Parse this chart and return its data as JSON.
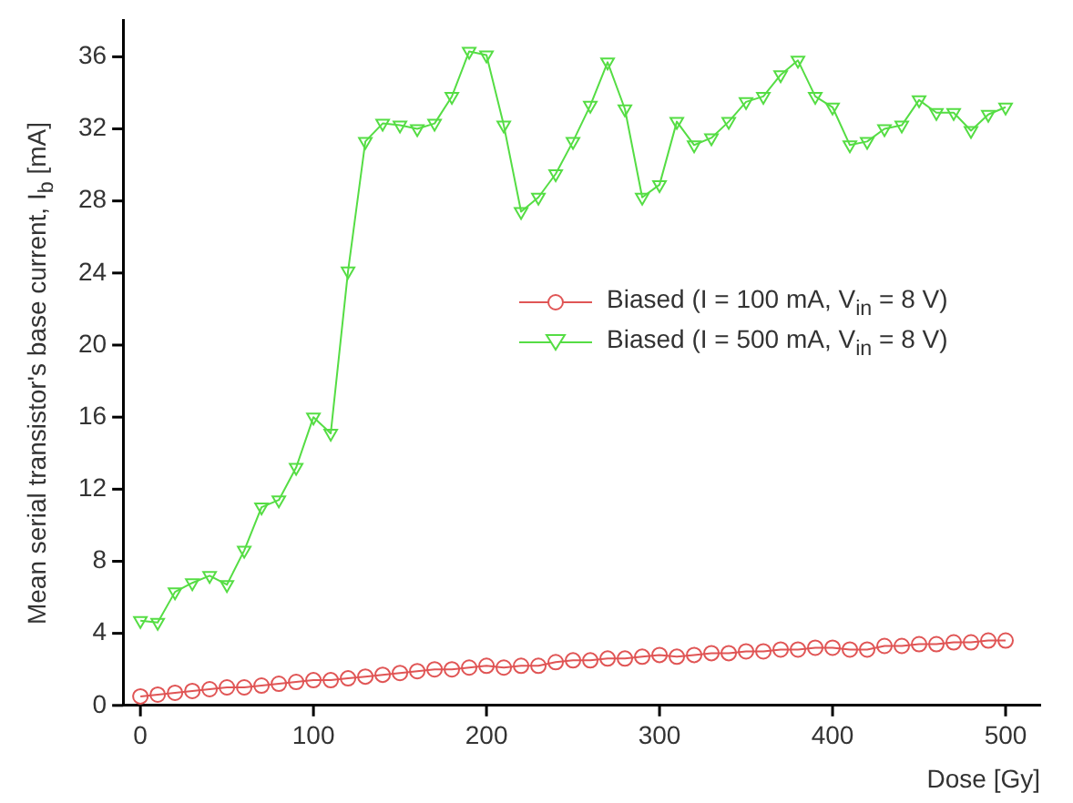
{
  "chart_data": {
    "type": "line",
    "xlabel": "Dose [Gy]",
    "ylabel": "Mean serial transistor's base current, I$_{b}$ [mA]",
    "xlim": [
      -10,
      520
    ],
    "xticks": [
      0,
      100,
      200,
      300,
      400,
      500
    ],
    "ylim": [
      0,
      38
    ],
    "yticks": [
      0,
      4,
      8,
      12,
      16,
      20,
      24,
      28,
      32,
      36
    ],
    "grid": false,
    "legend": "right",
    "line_style": "solid",
    "series": [
      {
        "name": "Biased (I = 100 mA, V$_{in}$ = 8 V)",
        "color": "#e05555",
        "marker": "circle",
        "x": [
          0,
          10,
          20,
          30,
          40,
          50,
          60,
          70,
          80,
          90,
          100,
          110,
          120,
          130,
          140,
          150,
          160,
          170,
          180,
          190,
          200,
          210,
          220,
          230,
          240,
          250,
          260,
          270,
          280,
          290,
          300,
          310,
          320,
          330,
          340,
          350,
          360,
          370,
          380,
          390,
          400,
          410,
          420,
          430,
          440,
          450,
          460,
          470,
          480,
          490,
          500
        ],
        "values": [
          0.5,
          0.6,
          0.7,
          0.8,
          0.9,
          1.0,
          1.0,
          1.1,
          1.2,
          1.3,
          1.4,
          1.4,
          1.5,
          1.6,
          1.7,
          1.8,
          1.9,
          2.0,
          2.0,
          2.1,
          2.2,
          2.1,
          2.2,
          2.2,
          2.4,
          2.5,
          2.5,
          2.6,
          2.6,
          2.7,
          2.8,
          2.7,
          2.8,
          2.9,
          2.9,
          3.0,
          3.0,
          3.1,
          3.1,
          3.2,
          3.2,
          3.1,
          3.1,
          3.3,
          3.3,
          3.4,
          3.4,
          3.5,
          3.5,
          3.6,
          3.6
        ]
      },
      {
        "name": "Biased (I = 500 mA, V$_{in}$ = 8 V)",
        "color": "#55dd44",
        "marker": "triangle",
        "x": [
          0,
          10,
          20,
          30,
          40,
          50,
          60,
          70,
          80,
          90,
          100,
          110,
          120,
          130,
          140,
          150,
          160,
          170,
          180,
          190,
          200,
          210,
          220,
          230,
          240,
          250,
          260,
          270,
          280,
          290,
          300,
          310,
          320,
          330,
          340,
          350,
          360,
          370,
          380,
          390,
          400,
          410,
          420,
          430,
          440,
          450,
          460,
          470,
          480,
          490,
          500
        ],
        "values": [
          4.7,
          4.6,
          6.3,
          6.8,
          7.2,
          6.7,
          8.6,
          11.0,
          11.4,
          13.2,
          16.0,
          15.1,
          24.1,
          31.3,
          32.3,
          32.2,
          32.0,
          32.3,
          33.8,
          36.3,
          36.1,
          32.2,
          27.4,
          28.2,
          29.5,
          31.3,
          33.3,
          35.7,
          33.1,
          28.2,
          28.9,
          32.4,
          31.1,
          31.5,
          32.4,
          33.5,
          33.8,
          35.0,
          35.8,
          33.8,
          33.2,
          31.1,
          31.3,
          32.0,
          32.2,
          33.6,
          32.9,
          32.9,
          31.9,
          32.8,
          33.2
        ]
      }
    ]
  }
}
